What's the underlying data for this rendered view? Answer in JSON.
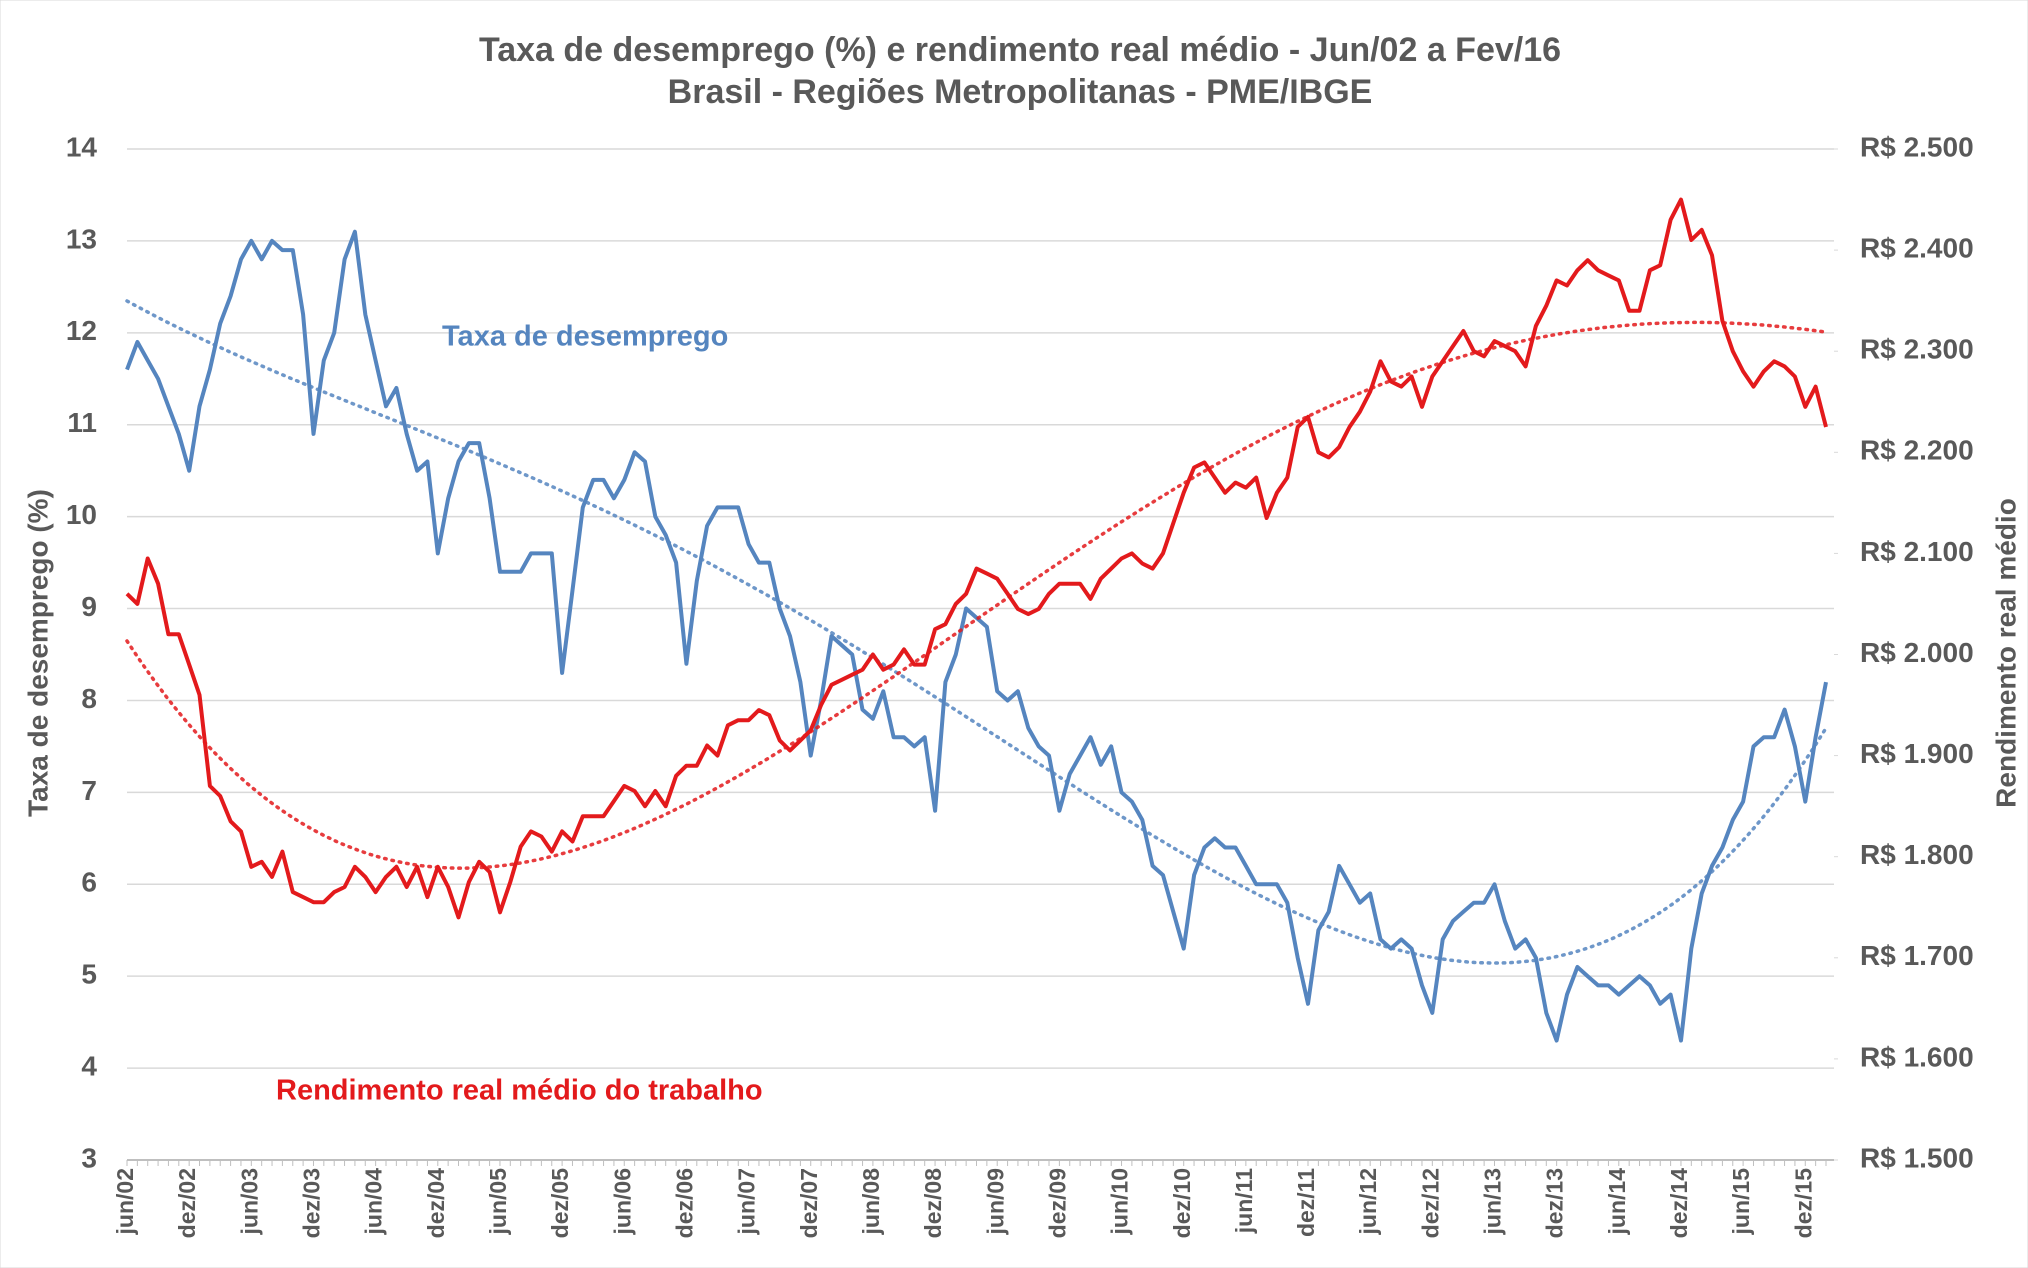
{
  "chart_data": {
    "type": "line",
    "title": "Taxa de desemprego (%)  e rendimento real médio - Jun/02 a Fev/16",
    "subtitle": "Brasil - Regiões Metropolitanas - PME/IBGE",
    "y_label": "Taxa de desemprego (%)",
    "y2_label": "Rendimento real médio",
    "categories": [
      "jun/02",
      null,
      null,
      null,
      null,
      null,
      "dez/02",
      null,
      null,
      null,
      null,
      null,
      "jun/03",
      null,
      null,
      null,
      null,
      null,
      "dez/03",
      null,
      null,
      null,
      null,
      null,
      "jun/04",
      null,
      null,
      null,
      null,
      null,
      "dez/04",
      null,
      null,
      null,
      null,
      null,
      "jun/05",
      null,
      null,
      null,
      null,
      null,
      "dez/05",
      null,
      null,
      null,
      null,
      null,
      "jun/06",
      null,
      null,
      null,
      null,
      null,
      "dez/06",
      null,
      null,
      null,
      null,
      null,
      "jun/07",
      null,
      null,
      null,
      null,
      null,
      "dez/07",
      null,
      null,
      null,
      null,
      null,
      "jun/08",
      null,
      null,
      null,
      null,
      null,
      "dez/08",
      null,
      null,
      null,
      null,
      null,
      "jun/09",
      null,
      null,
      null,
      null,
      null,
      "dez/09",
      null,
      null,
      null,
      null,
      null,
      "jun/10",
      null,
      null,
      null,
      null,
      null,
      "dez/10",
      null,
      null,
      null,
      null,
      null,
      "jun/11",
      null,
      null,
      null,
      null,
      null,
      "dez/11",
      null,
      null,
      null,
      null,
      null,
      "jun/12",
      null,
      null,
      null,
      null,
      null,
      "dez/12",
      null,
      null,
      null,
      null,
      null,
      "jun/13",
      null,
      null,
      null,
      null,
      null,
      "dez/13",
      null,
      null,
      null,
      null,
      null,
      "jun/14",
      null,
      null,
      null,
      null,
      null,
      "dez/14",
      null,
      null,
      null,
      null,
      null,
      "jun/15",
      null,
      null,
      null,
      null,
      null,
      "dez/15",
      null,
      null
    ],
    "series": [
      {
        "name": "Taxa de desemprego",
        "color": "#5585bf",
        "trendline": "polynomial",
        "trendline_order": 4,
        "values": [
          11.6,
          11.9,
          11.7,
          11.5,
          11.2,
          10.9,
          10.5,
          11.2,
          11.6,
          12.1,
          12.4,
          12.8,
          13.0,
          12.8,
          13.0,
          12.9,
          12.9,
          12.2,
          10.9,
          11.7,
          12.0,
          12.8,
          13.1,
          12.2,
          11.7,
          11.2,
          11.4,
          10.9,
          10.5,
          10.6,
          9.6,
          10.2,
          10.6,
          10.8,
          10.8,
          10.2,
          9.4,
          9.4,
          9.4,
          9.6,
          9.6,
          9.6,
          8.3,
          9.2,
          10.1,
          10.4,
          10.4,
          10.2,
          10.4,
          10.7,
          10.6,
          10.0,
          9.8,
          9.5,
          8.4,
          9.3,
          9.9,
          10.1,
          10.1,
          10.1,
          9.7,
          9.5,
          9.5,
          9.0,
          8.7,
          8.2,
          7.4,
          8.0,
          8.7,
          8.6,
          8.5,
          7.9,
          7.8,
          8.1,
          7.6,
          7.6,
          7.5,
          7.6,
          6.8,
          8.2,
          8.5,
          9.0,
          8.9,
          8.8,
          8.1,
          8.0,
          8.1,
          7.7,
          7.5,
          7.4,
          6.8,
          7.2,
          7.4,
          7.6,
          7.3,
          7.5,
          7.0,
          6.9,
          6.7,
          6.2,
          6.1,
          5.7,
          5.3,
          6.1,
          6.4,
          6.5,
          6.4,
          6.4,
          6.2,
          6.0,
          6.0,
          6.0,
          5.8,
          5.2,
          4.7,
          5.5,
          5.7,
          6.2,
          6.0,
          5.8,
          5.9,
          5.4,
          5.3,
          5.4,
          5.3,
          4.9,
          4.6,
          5.4,
          5.6,
          5.7,
          5.8,
          5.8,
          6.0,
          5.6,
          5.3,
          5.4,
          5.2,
          4.6,
          4.3,
          4.8,
          5.1,
          5.0,
          4.9,
          4.9,
          4.8,
          4.9,
          5.0,
          4.9,
          4.7,
          4.8,
          4.3,
          5.3,
          5.9,
          6.2,
          6.4,
          6.7,
          6.9,
          7.5,
          7.6,
          7.6,
          7.9,
          7.5,
          6.9,
          7.6,
          8.2
        ]
      },
      {
        "name": "Rendimento real médio do trabalho",
        "color": "#e31a1c",
        "axis": "y2",
        "trendline": "polynomial",
        "trendline_order": 4,
        "values": [
          2060,
          2050,
          2095,
          2070,
          2020,
          2020,
          1990,
          1960,
          1870,
          1860,
          1835,
          1825,
          1790,
          1795,
          1780,
          1805,
          1765,
          1760,
          1755,
          1755,
          1765,
          1770,
          1790,
          1780,
          1765,
          1780,
          1790,
          1770,
          1790,
          1760,
          1790,
          1770,
          1740,
          1775,
          1795,
          1785,
          1745,
          1775,
          1810,
          1825,
          1820,
          1805,
          1825,
          1815,
          1840,
          1840,
          1840,
          1855,
          1870,
          1865,
          1850,
          1865,
          1850,
          1880,
          1890,
          1890,
          1910,
          1900,
          1930,
          1935,
          1935,
          1945,
          1940,
          1915,
          1905,
          1915,
          1925,
          1950,
          1970,
          1975,
          1980,
          1985,
          2000,
          1985,
          1990,
          2005,
          1990,
          1990,
          2025,
          2030,
          2050,
          2060,
          2085,
          2080,
          2075,
          2060,
          2045,
          2040,
          2045,
          2060,
          2070,
          2070,
          2070,
          2055,
          2075,
          2085,
          2095,
          2100,
          2090,
          2085,
          2100,
          2130,
          2160,
          2185,
          2190,
          2175,
          2160,
          2170,
          2165,
          2175,
          2135,
          2160,
          2175,
          2225,
          2235,
          2200,
          2195,
          2205,
          2225,
          2240,
          2260,
          2290,
          2270,
          2265,
          2275,
          2245,
          2275,
          2290,
          2305,
          2320,
          2300,
          2295,
          2310,
          2305,
          2300,
          2285,
          2325,
          2345,
          2370,
          2365,
          2380,
          2390,
          2380,
          2375,
          2370,
          2340,
          2340,
          2380,
          2385,
          2430,
          2450,
          2410,
          2420,
          2395,
          2330,
          2300,
          2280,
          2265,
          2280,
          2290,
          2285,
          2275,
          2245,
          2265,
          2225
        ]
      }
    ],
    "ylim": [
      3,
      14
    ],
    "yticks": [
      3,
      4,
      5,
      6,
      7,
      8,
      9,
      10,
      11,
      12,
      13,
      14
    ],
    "y2lim": [
      1500,
      2500
    ],
    "y2ticks": [
      {
        "value": 1500,
        "label": "R$ 1.500"
      },
      {
        "value": 1600,
        "label": "R$ 1.600"
      },
      {
        "value": 1700,
        "label": "R$ 1.700"
      },
      {
        "value": 1800,
        "label": "R$ 1.800"
      },
      {
        "value": 1900,
        "label": "R$ 1.900"
      },
      {
        "value": 2000,
        "label": "R$ 2.000"
      },
      {
        "value": 2100,
        "label": "R$ 2.100"
      },
      {
        "value": 2200,
        "label": "R$ 2.200"
      },
      {
        "value": 2300,
        "label": "R$ 2.300"
      },
      {
        "value": 2400,
        "label": "R$ 2.400"
      },
      {
        "value": 2500,
        "label": "R$ 2.500"
      }
    ],
    "grid": true
  }
}
